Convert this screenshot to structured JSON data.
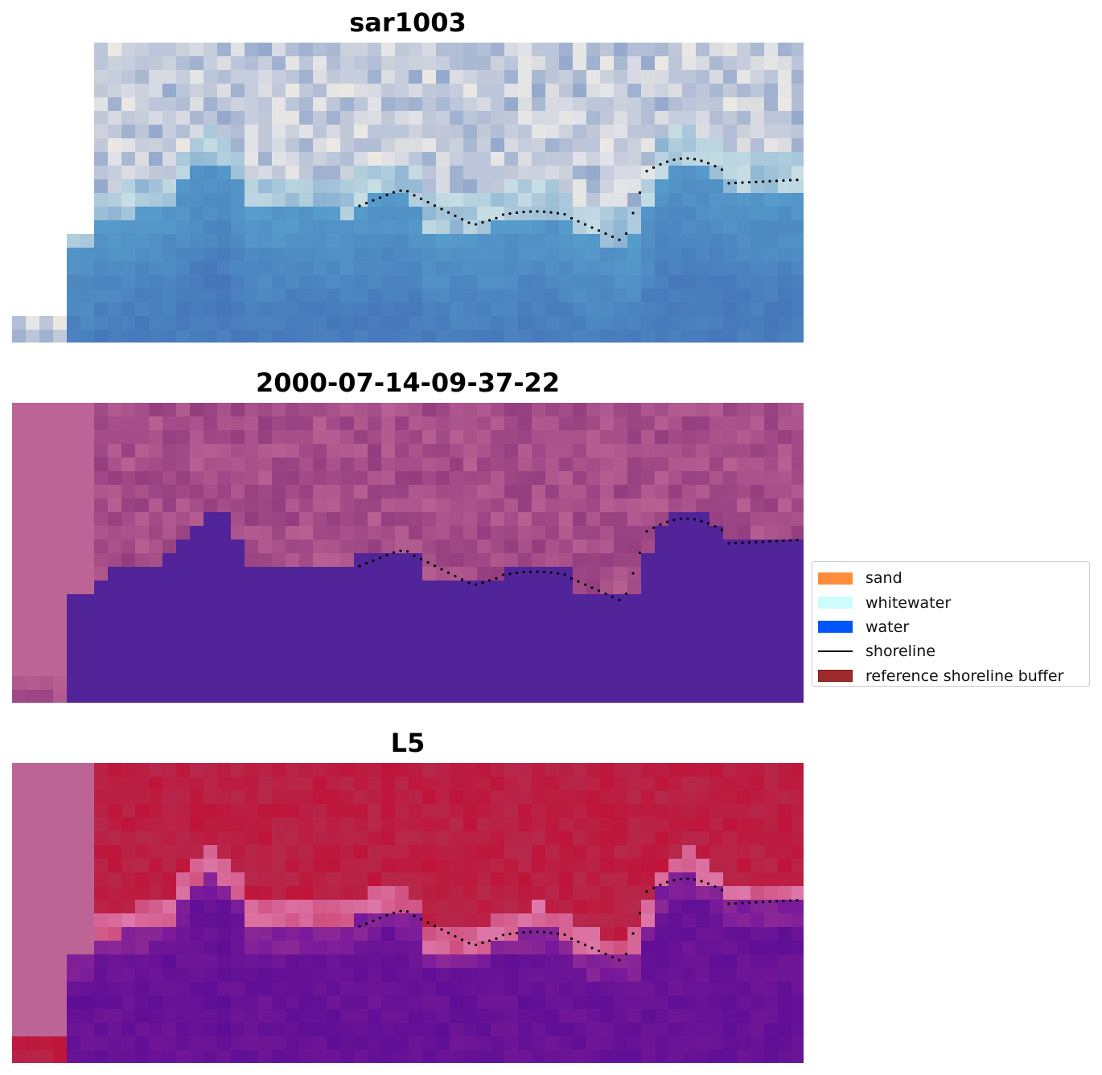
{
  "panels": [
    {
      "title": "sar1003",
      "kind": "rgb"
    },
    {
      "title": "2000-07-14-09-37-22",
      "kind": "class"
    },
    {
      "title": "L5",
      "kind": "prob"
    }
  ],
  "legend": {
    "items": [
      {
        "label": "sand",
        "color": "#ff8c3a",
        "shape": "patch"
      },
      {
        "label": "whitewater",
        "color": "#ccfcfc",
        "shape": "patch"
      },
      {
        "label": "water",
        "color": "#0055ff",
        "shape": "patch"
      },
      {
        "label": "shoreline",
        "color": "#000000",
        "shape": "line"
      },
      {
        "label": "reference shoreline buffer",
        "color": "#9e2a2a",
        "shape": "patch"
      }
    ]
  },
  "colors": {
    "nodata": "#bd6496",
    "water_class": "#52249a",
    "land_prob": "#c0183a",
    "water_prob": "#6a129c"
  }
}
